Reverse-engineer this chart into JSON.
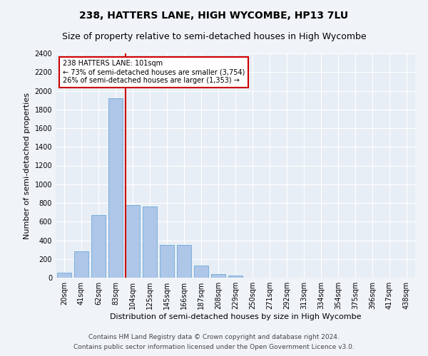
{
  "title": "238, HATTERS LANE, HIGH WYCOMBE, HP13 7LU",
  "subtitle": "Size of property relative to semi-detached houses in High Wycombe",
  "xlabel": "Distribution of semi-detached houses by size in High Wycombe",
  "ylabel": "Number of semi-detached properties",
  "footnote1": "Contains HM Land Registry data © Crown copyright and database right 2024.",
  "footnote2": "Contains public sector information licensed under the Open Government Licence v3.0.",
  "property_label": "238 HATTERS LANE: 101sqm",
  "pct_smaller": 73,
  "pct_larger": 26,
  "n_smaller": 3754,
  "n_larger": 1353,
  "bin_labels": [
    "20sqm",
    "41sqm",
    "62sqm",
    "83sqm",
    "104sqm",
    "125sqm",
    "145sqm",
    "166sqm",
    "187sqm",
    "208sqm",
    "229sqm",
    "250sqm",
    "271sqm",
    "292sqm",
    "313sqm",
    "334sqm",
    "354sqm",
    "375sqm",
    "396sqm",
    "417sqm",
    "438sqm"
  ],
  "bar_heights": [
    50,
    280,
    670,
    1920,
    780,
    760,
    350,
    350,
    130,
    35,
    20,
    0,
    0,
    0,
    0,
    0,
    0,
    0,
    0,
    0,
    0
  ],
  "bar_color": "#aec6e8",
  "bar_edge_color": "#5a9fd4",
  "vline_bin_index": 4,
  "vline_color": "#cc0000",
  "annotation_box_color": "#cc0000",
  "ylim": [
    0,
    2400
  ],
  "yticks": [
    0,
    200,
    400,
    600,
    800,
    1000,
    1200,
    1400,
    1600,
    1800,
    2000,
    2200,
    2400
  ],
  "bg_color": "#e8eef5",
  "fig_bg_color": "#f0f4f8",
  "title_fontsize": 10,
  "subtitle_fontsize": 9,
  "tick_fontsize": 7,
  "ylabel_fontsize": 8,
  "xlabel_fontsize": 8,
  "annotation_fontsize": 7,
  "footnote_fontsize": 6.5
}
